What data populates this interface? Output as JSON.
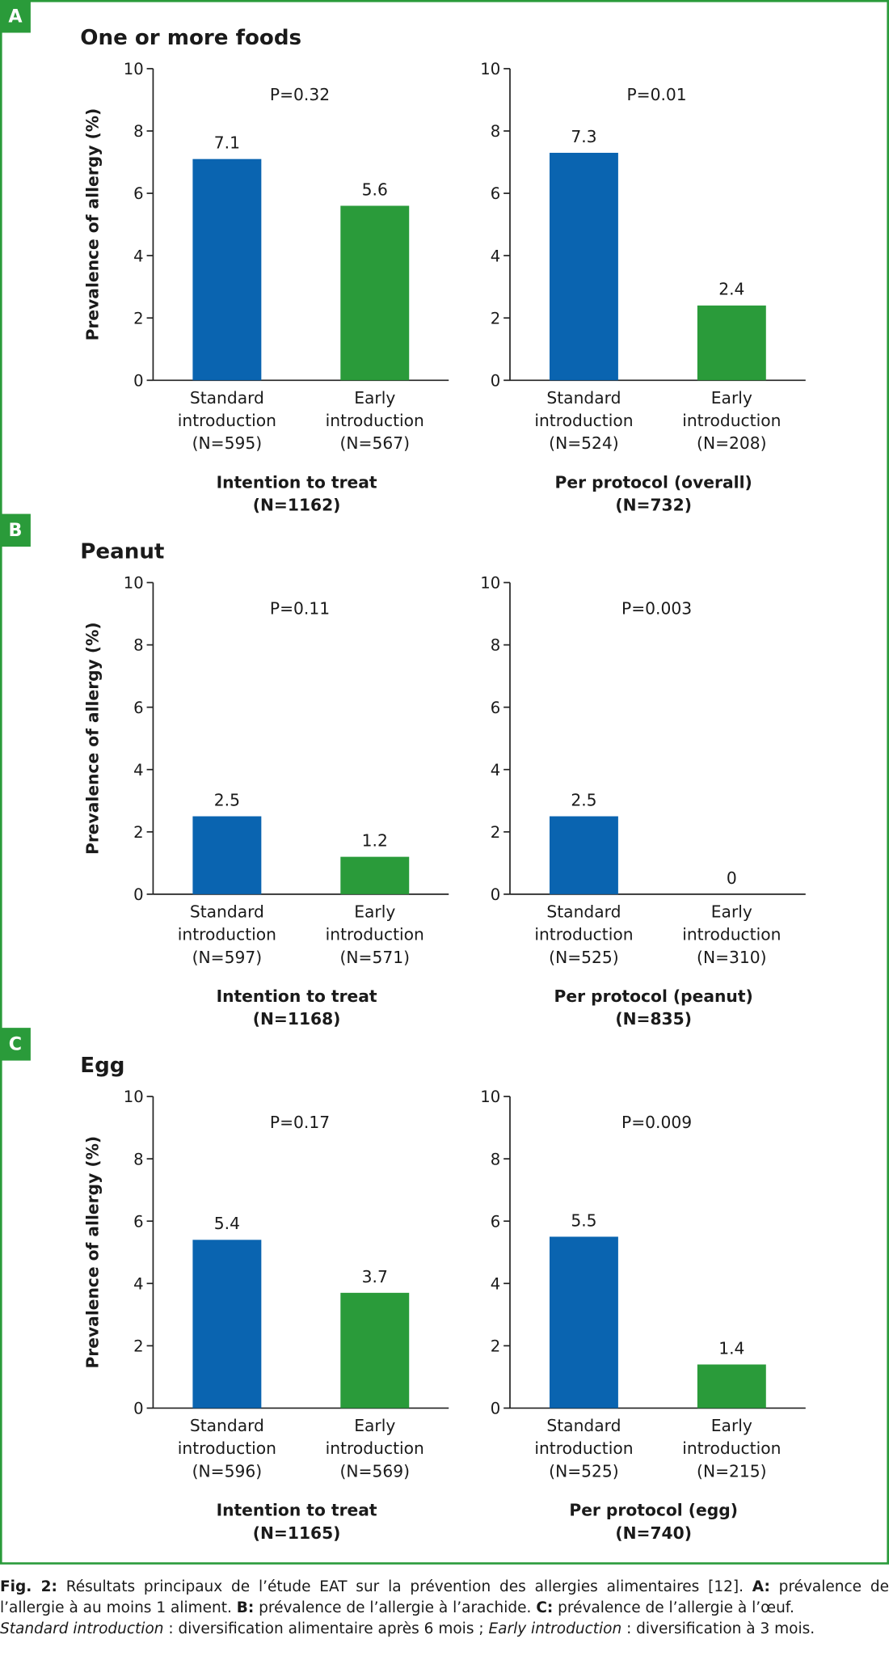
{
  "panels": [
    {
      "label": "A",
      "title": "One or more foods"
    },
    {
      "label": "B",
      "title": "Peanut"
    },
    {
      "label": "C",
      "title": "Egg"
    }
  ],
  "chart_data": [
    {
      "type": "bar",
      "y_label": "Prevalence of allergy (%)",
      "annotation": "P=0.32",
      "categories": [
        [
          "Standard",
          "introduction",
          "(N=595)"
        ],
        [
          "Early",
          "introduction",
          "(N=567)"
        ]
      ],
      "values": [
        7.1,
        5.6
      ],
      "colors": [
        "#0a64b0",
        "#2a9b3a"
      ],
      "x_label": [
        "Intention to treat",
        "(N=1162)"
      ],
      "ylim": [
        0,
        10
      ],
      "yticks": [
        0,
        2,
        4,
        6,
        8,
        10
      ]
    },
    {
      "type": "bar",
      "annotation": "P=0.01",
      "categories": [
        [
          "Standard",
          "introduction",
          "(N=524)"
        ],
        [
          "Early",
          "introduction",
          "(N=208)"
        ]
      ],
      "values": [
        7.3,
        2.4
      ],
      "colors": [
        "#0a64b0",
        "#2a9b3a"
      ],
      "x_label": [
        "Per protocol (overall)",
        "(N=732)"
      ],
      "ylim": [
        0,
        10
      ],
      "yticks": [
        0,
        2,
        4,
        6,
        8,
        10
      ]
    },
    {
      "type": "bar",
      "y_label": "Prevalence of allergy (%)",
      "annotation": "P=0.11",
      "categories": [
        [
          "Standard",
          "introduction",
          "(N=597)"
        ],
        [
          "Early",
          "introduction",
          "(N=571)"
        ]
      ],
      "values": [
        2.5,
        1.2
      ],
      "colors": [
        "#0a64b0",
        "#2a9b3a"
      ],
      "x_label": [
        "Intention to treat",
        "(N=1168)"
      ],
      "ylim": [
        0,
        10
      ],
      "yticks": [
        0,
        2,
        4,
        6,
        8,
        10
      ]
    },
    {
      "type": "bar",
      "annotation": "P=0.003",
      "categories": [
        [
          "Standard",
          "introduction",
          "(N=525)"
        ],
        [
          "Early",
          "introduction",
          "(N=310)"
        ]
      ],
      "values": [
        2.5,
        0
      ],
      "colors": [
        "#0a64b0",
        "#2a9b3a"
      ],
      "x_label": [
        "Per protocol (peanut)",
        "(N=835)"
      ],
      "ylim": [
        0,
        10
      ],
      "yticks": [
        0,
        2,
        4,
        6,
        8,
        10
      ]
    },
    {
      "type": "bar",
      "y_label": "Prevalence of allergy (%)",
      "annotation": "P=0.17",
      "categories": [
        [
          "Standard",
          "introduction",
          "(N=596)"
        ],
        [
          "Early",
          "introduction",
          "(N=569)"
        ]
      ],
      "values": [
        5.4,
        3.7
      ],
      "colors": [
        "#0a64b0",
        "#2a9b3a"
      ],
      "x_label": [
        "Intention to treat",
        "(N=1165)"
      ],
      "ylim": [
        0,
        10
      ],
      "yticks": [
        0,
        2,
        4,
        6,
        8,
        10
      ]
    },
    {
      "type": "bar",
      "annotation": "P=0.009",
      "categories": [
        [
          "Standard",
          "introduction",
          "(N=525)"
        ],
        [
          "Early",
          "introduction",
          "(N=215)"
        ]
      ],
      "values": [
        5.5,
        1.4
      ],
      "colors": [
        "#0a64b0",
        "#2a9b3a"
      ],
      "x_label": [
        "Per protocol (egg)",
        "(N=740)"
      ],
      "ylim": [
        0,
        10
      ],
      "yticks": [
        0,
        2,
        4,
        6,
        8,
        10
      ]
    }
  ],
  "caption": [
    "Fig. 2:",
    " Résultats principaux de l’étude EAT sur la prévention des allergies alimentaires [12]. ",
    "A:",
    " prévalence de l’allergie à au moins 1 aliment. ",
    "B:",
    " prévalence de l’allergie à l’arachide. ",
    "C:",
    " prévalence de l’allergie à l’œuf.",
    "Standard introduction",
    " : diversification alimentaire après 6 mois ; ",
    "Early introduction",
    " : diversification à 3 mois."
  ]
}
